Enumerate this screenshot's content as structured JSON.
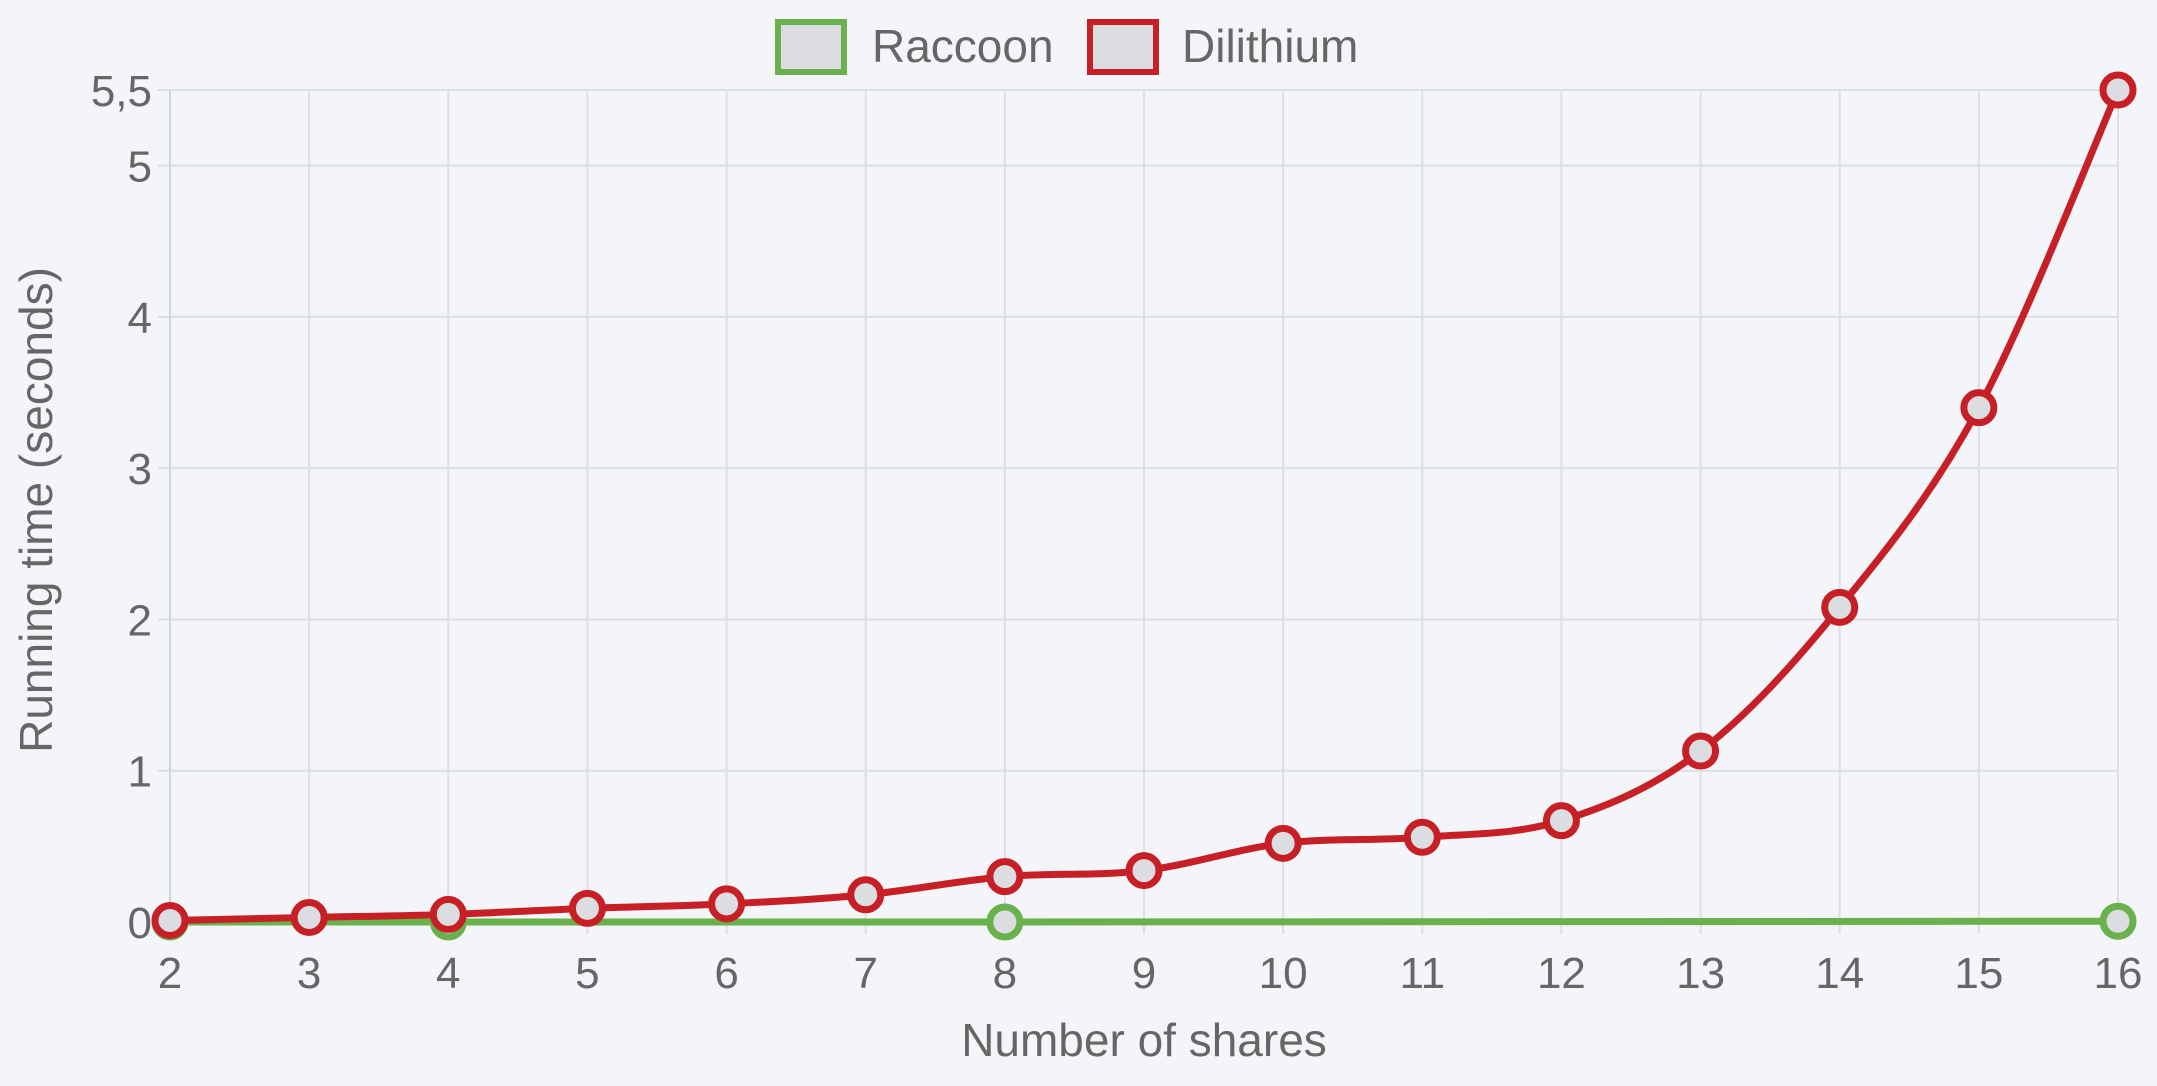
{
  "chart_data": {
    "type": "line",
    "title": "",
    "xlabel": "Number of shares",
    "ylabel": "Running time (seconds)",
    "xlim": [
      2,
      16
    ],
    "ylim": [
      0,
      5.5
    ],
    "x_ticks": [
      "2",
      "3",
      "4",
      "5",
      "6",
      "7",
      "8",
      "9",
      "10",
      "11",
      "12",
      "13",
      "14",
      "15",
      "16"
    ],
    "y_ticks": [
      {
        "value": 0,
        "label": "0"
      },
      {
        "value": 1,
        "label": "1"
      },
      {
        "value": 2,
        "label": "2"
      },
      {
        "value": 3,
        "label": "3"
      },
      {
        "value": 4,
        "label": "4"
      },
      {
        "value": 5,
        "label": "5"
      },
      {
        "value": 5.5,
        "label": "5,5"
      }
    ],
    "grid": true,
    "legend_position": "top-center",
    "series": [
      {
        "name": "Raccoon",
        "color": "#6ab04c",
        "x": [
          2,
          4,
          8,
          16
        ],
        "values": [
          0.0,
          0.0,
          0.0,
          0.005
        ]
      },
      {
        "name": "Dilithium",
        "color": "#c62026",
        "x": [
          2,
          3,
          4,
          5,
          6,
          7,
          8,
          9,
          10,
          11,
          12,
          13,
          14,
          15,
          16
        ],
        "values": [
          0.01,
          0.03,
          0.05,
          0.09,
          0.12,
          0.18,
          0.3,
          0.34,
          0.52,
          0.56,
          0.67,
          1.13,
          2.08,
          3.4,
          5.5
        ]
      }
    ]
  }
}
